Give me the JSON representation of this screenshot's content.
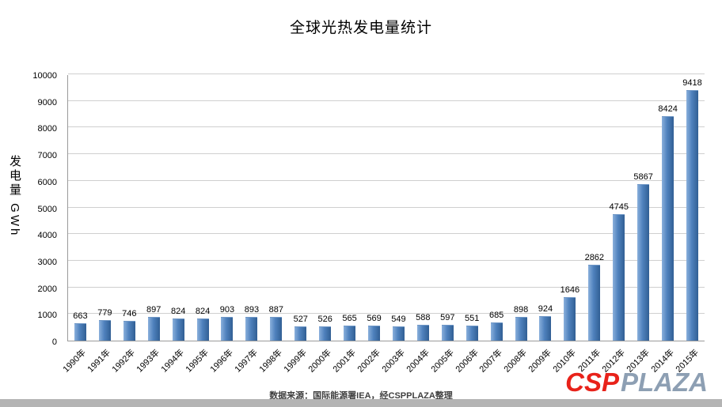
{
  "chart_data": {
    "type": "bar",
    "title": "全球光热发电量统计",
    "ylabel": "发电量 GWh",
    "categories": [
      "1990年",
      "1991年",
      "1992年",
      "1993年",
      "1994年",
      "1995年",
      "1996年",
      "1997年",
      "1998年",
      "1999年",
      "2000年",
      "2001年",
      "2002年",
      "2003年",
      "2004年",
      "2005年",
      "2006年",
      "2007年",
      "2008年",
      "2009年",
      "2010年",
      "2011年",
      "2012年",
      "2013年",
      "2014年",
      "2015年"
    ],
    "values": [
      663,
      779,
      746,
      897,
      824,
      824,
      903,
      893,
      887,
      527,
      526,
      565,
      569,
      549,
      588,
      597,
      551,
      685,
      898,
      924,
      1646,
      2862,
      4745,
      5867,
      8424,
      9418
    ],
    "ylim": [
      0,
      10000
    ],
    "ytick_step": 1000,
    "grid": true,
    "legend": "none",
    "bar_color": "#4f81bd",
    "source_note": "数据来源：国际能源署IEA，经CSPPLAZA整理"
  },
  "logo": {
    "csp": "CSP",
    "plaza": "PLAZA",
    "csp_color": "#e8221a",
    "plaza_color": "#8d9fb3"
  }
}
